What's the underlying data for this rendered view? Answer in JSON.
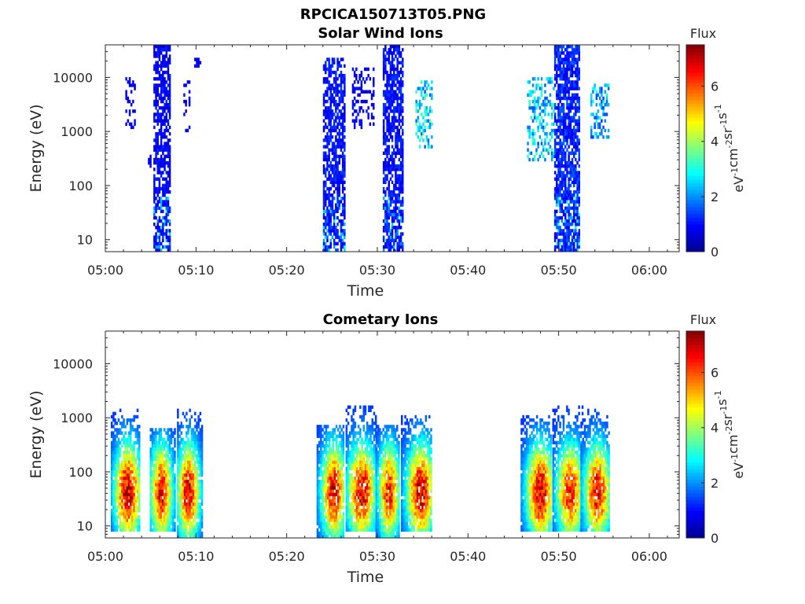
{
  "figure_title": "RPCICA150713T05.PNG",
  "colormap": [
    "#00008f",
    "#0000ff",
    "#0080ff",
    "#00ffff",
    "#80ff80",
    "#ffff00",
    "#ff8000",
    "#ff0000",
    "#800000"
  ],
  "chart_data": [
    {
      "type": "heatmap",
      "title": "Solar Wind Ions",
      "xlabel": "Time",
      "ylabel": "Energy (eV)",
      "y_scale": "log",
      "x_ticks": [
        "05:00",
        "05:10",
        "05:20",
        "05:30",
        "05:40",
        "05:50",
        "06:00"
      ],
      "y_ticks": [
        "10",
        "100",
        "1000",
        "10000"
      ],
      "xlim_minutes": [
        0,
        63.3
      ],
      "ylim": [
        6,
        40000
      ],
      "colorbar": {
        "title": "Flux",
        "label": "eV-1cm-2sr-1s-1",
        "ticks": [
          "0",
          "2",
          "4",
          "6"
        ],
        "range": [
          0,
          7.5
        ]
      },
      "bursts": [
        {
          "t0": 2.2,
          "t1": 3.2,
          "emin": 1100,
          "emax": 9500,
          "level": 0.8,
          "density": 0.35
        },
        {
          "t0": 4.5,
          "t1": 5.2,
          "emin": 200,
          "emax": 330,
          "level": 0.8,
          "density": 0.4
        },
        {
          "t0": 5.3,
          "t1": 7.1,
          "emin": 6,
          "emax": 35000,
          "level": 0.9,
          "density": 0.7
        },
        {
          "t0": 8.6,
          "t1": 9.2,
          "emin": 800,
          "emax": 9000,
          "level": 0.8,
          "density": 0.3
        },
        {
          "t0": 9.8,
          "t1": 10.4,
          "emin": 15000,
          "emax": 23000,
          "level": 0.8,
          "density": 0.5
        },
        {
          "t0": 24.0,
          "t1": 26.3,
          "emin": 6,
          "emax": 23000,
          "level": 1.0,
          "density": 0.7
        },
        {
          "t0": 27.2,
          "t1": 29.6,
          "emin": 1000,
          "emax": 15000,
          "level": 0.8,
          "density": 0.3
        },
        {
          "t0": 30.6,
          "t1": 32.7,
          "emin": 6,
          "emax": 35000,
          "level": 1.0,
          "density": 0.7
        },
        {
          "t0": 34.2,
          "t1": 36.0,
          "emin": 450,
          "emax": 8000,
          "level": 2.6,
          "density": 0.4
        },
        {
          "t0": 46.5,
          "t1": 49.4,
          "emin": 250,
          "emax": 9000,
          "level": 2.4,
          "density": 0.35
        },
        {
          "t0": 49.5,
          "t1": 52.3,
          "emin": 6,
          "emax": 38000,
          "level": 1.2,
          "density": 0.75
        },
        {
          "t0": 53.5,
          "t1": 55.4,
          "emin": 700,
          "emax": 7500,
          "level": 2.2,
          "density": 0.45
        }
      ]
    },
    {
      "type": "heatmap",
      "title": "Cometary Ions",
      "xlabel": "Time",
      "ylabel": "Energy (eV)",
      "y_scale": "log",
      "x_ticks": [
        "05:00",
        "05:10",
        "05:20",
        "05:30",
        "05:40",
        "05:50",
        "06:00"
      ],
      "y_ticks": [
        "10",
        "100",
        "1000",
        "10000"
      ],
      "xlim_minutes": [
        0,
        63.3
      ],
      "ylim": [
        6,
        40000
      ],
      "colorbar": {
        "title": "Flux",
        "label": "eV-1cm-2sr-1s-1",
        "ticks": [
          "0",
          "2",
          "4",
          "6"
        ],
        "range": [
          0,
          7.5
        ]
      },
      "bursts": [
        {
          "t0": 0.6,
          "t1": 3.8,
          "center": 2.4,
          "emin": 7,
          "emax": 1300,
          "peak": 6.8
        },
        {
          "t0": 4.9,
          "t1": 7.6,
          "center": 6.1,
          "emin": 7,
          "emax": 600,
          "peak": 6.4
        },
        {
          "t0": 7.9,
          "t1": 10.6,
          "center": 9.1,
          "emin": 6,
          "emax": 1400,
          "peak": 6.6
        },
        {
          "t0": 23.3,
          "t1": 26.3,
          "center": 25.1,
          "emin": 6,
          "emax": 650,
          "peak": 6.5
        },
        {
          "t0": 26.5,
          "t1": 29.9,
          "center": 28.2,
          "emin": 7,
          "emax": 1500,
          "peak": 6.6
        },
        {
          "t0": 29.8,
          "t1": 32.4,
          "center": 31.2,
          "emin": 6,
          "emax": 700,
          "peak": 6.2
        },
        {
          "t0": 32.6,
          "t1": 36.0,
          "center": 34.7,
          "emin": 7,
          "emax": 1100,
          "peak": 6.7
        },
        {
          "t0": 45.8,
          "t1": 49.2,
          "center": 47.9,
          "emin": 7,
          "emax": 1100,
          "peak": 6.7
        },
        {
          "t0": 49.3,
          "t1": 52.6,
          "center": 51.2,
          "emin": 7,
          "emax": 1500,
          "peak": 6.2
        },
        {
          "t0": 52.4,
          "t1": 55.6,
          "center": 54.2,
          "emin": 7,
          "emax": 1300,
          "peak": 6.4
        }
      ]
    }
  ]
}
